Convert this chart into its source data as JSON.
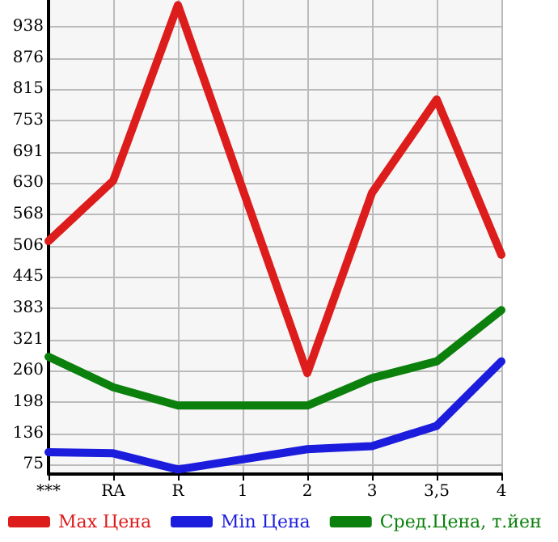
{
  "chart_data": {
    "type": "line",
    "categories": [
      "***",
      "RA",
      "R",
      "1",
      "2",
      "3",
      "3,5",
      "4"
    ],
    "series": [
      {
        "name": "Max Цена",
        "color": "#dd1c1c",
        "values": [
          515,
          634,
          980,
          null,
          255,
          610,
          794,
          488
        ]
      },
      {
        "name": "Min Цена",
        "color": "#1c1cdd",
        "values": [
          99,
          97,
          65,
          null,
          105,
          111,
          151,
          278
        ]
      },
      {
        "name": "Сред.Цена, т.йен",
        "color": "#0c800c",
        "values": [
          287,
          227,
          191,
          null,
          191,
          245,
          278,
          379
        ]
      }
    ],
    "ylim": [
      56,
      990
    ],
    "yticks": [
      75,
      136,
      198,
      260,
      321,
      383,
      445,
      506,
      568,
      630,
      691,
      753,
      815,
      876,
      938
    ],
    "grid": true,
    "legend": "bottom",
    "marker": "none",
    "line_style": "solid"
  }
}
